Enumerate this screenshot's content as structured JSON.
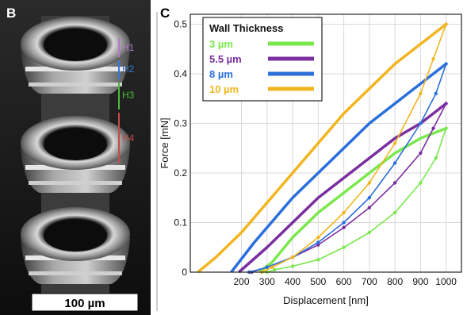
{
  "panel_b": {
    "label": "B",
    "scale_bar": "100 µm",
    "height_labels": [
      {
        "text": "H1",
        "color": "#b07cc6"
      },
      {
        "text": "H2",
        "color": "#3a78d8"
      },
      {
        "text": "H3",
        "color": "#4cbb3c"
      },
      {
        "text": "H4",
        "color": "#c64a4a"
      }
    ]
  },
  "panel_c": {
    "label": "C"
  },
  "chart_data": {
    "type": "line",
    "title": "",
    "xlabel": "Displacement [nm]",
    "ylabel": "Force [mN]",
    "xlim": [
      0,
      1060
    ],
    "ylim": [
      0,
      0.52
    ],
    "xticks": [
      200,
      300,
      400,
      500,
      600,
      700,
      800,
      900,
      1000
    ],
    "yticks": [
      0,
      0.1,
      0.2,
      0.3,
      0.4,
      0.5
    ],
    "ytick_labels": [
      "0",
      "0.1",
      "0.2",
      "0.3",
      "0.4",
      "0.5"
    ],
    "grid": true,
    "legend": {
      "title": "Wall Thickness",
      "placement": "top-left"
    },
    "series": [
      {
        "name": "3 µm",
        "color": "#7ae84e",
        "loading": [
          [
            270,
            0.0
          ],
          [
            320,
            0.02
          ],
          [
            400,
            0.07
          ],
          [
            500,
            0.12
          ],
          [
            600,
            0.16
          ],
          [
            700,
            0.2
          ],
          [
            800,
            0.24
          ],
          [
            900,
            0.27
          ],
          [
            1000,
            0.29
          ]
        ],
        "unloading": [
          [
            1000,
            0.29
          ],
          [
            960,
            0.23
          ],
          [
            900,
            0.18
          ],
          [
            800,
            0.12
          ],
          [
            700,
            0.08
          ],
          [
            600,
            0.05
          ],
          [
            500,
            0.025
          ],
          [
            400,
            0.012
          ],
          [
            330,
            0.005
          ],
          [
            300,
            0.0
          ]
        ]
      },
      {
        "name": "5.5 µm",
        "color": "#7b2fa0",
        "loading": [
          [
            190,
            0.0
          ],
          [
            300,
            0.05
          ],
          [
            400,
            0.1
          ],
          [
            500,
            0.15
          ],
          [
            600,
            0.19
          ],
          [
            700,
            0.23
          ],
          [
            800,
            0.27
          ],
          [
            900,
            0.3
          ],
          [
            1000,
            0.34
          ]
        ],
        "unloading": [
          [
            1000,
            0.34
          ],
          [
            950,
            0.29
          ],
          [
            900,
            0.24
          ],
          [
            800,
            0.18
          ],
          [
            700,
            0.13
          ],
          [
            600,
            0.09
          ],
          [
            500,
            0.055
          ],
          [
            400,
            0.03
          ],
          [
            300,
            0.01
          ],
          [
            240,
            0.0
          ]
        ]
      },
      {
        "name": "8 µm",
        "color": "#2a6fdb",
        "loading": [
          [
            160,
            0.0
          ],
          [
            250,
            0.06
          ],
          [
            300,
            0.09
          ],
          [
            400,
            0.15
          ],
          [
            500,
            0.2
          ],
          [
            600,
            0.25
          ],
          [
            700,
            0.3
          ],
          [
            800,
            0.34
          ],
          [
            900,
            0.38
          ],
          [
            1000,
            0.42
          ]
        ],
        "unloading": [
          [
            1000,
            0.42
          ],
          [
            960,
            0.36
          ],
          [
            900,
            0.3
          ],
          [
            800,
            0.22
          ],
          [
            700,
            0.15
          ],
          [
            600,
            0.1
          ],
          [
            500,
            0.06
          ],
          [
            400,
            0.03
          ],
          [
            300,
            0.01
          ],
          [
            230,
            0.0
          ]
        ]
      },
      {
        "name": "10 µm",
        "color": "#f2b51f",
        "loading": [
          [
            30,
            0.0
          ],
          [
            100,
            0.03
          ],
          [
            200,
            0.08
          ],
          [
            300,
            0.14
          ],
          [
            400,
            0.2
          ],
          [
            500,
            0.26
          ],
          [
            600,
            0.32
          ],
          [
            700,
            0.37
          ],
          [
            800,
            0.42
          ],
          [
            900,
            0.46
          ],
          [
            1000,
            0.5
          ]
        ],
        "unloading": [
          [
            1000,
            0.5
          ],
          [
            950,
            0.43
          ],
          [
            900,
            0.36
          ],
          [
            800,
            0.26
          ],
          [
            700,
            0.18
          ],
          [
            600,
            0.12
          ],
          [
            500,
            0.07
          ],
          [
            400,
            0.03
          ],
          [
            320,
            0.01
          ],
          [
            280,
            0.0
          ]
        ]
      }
    ]
  }
}
